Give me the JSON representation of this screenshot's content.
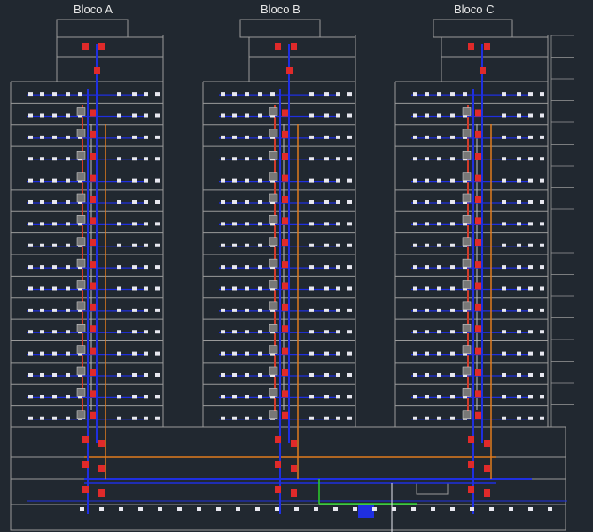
{
  "blocks": [
    {
      "label": "Bloco A"
    },
    {
      "label": "Bloco B"
    },
    {
      "label": "Bloco C"
    }
  ],
  "floors_per_tower": 15,
  "podium_levels": 4,
  "colors": {
    "background": "#212830",
    "structure": "#9a9a9a",
    "cold_water": "#1f2fe0",
    "hot_water": "#d13b2a",
    "gas": "#e07b1e",
    "drain": "#c0c0c0",
    "fixture": "#e8e8f0",
    "valve": "#e02a2a",
    "green_line": "#2bd12b"
  }
}
